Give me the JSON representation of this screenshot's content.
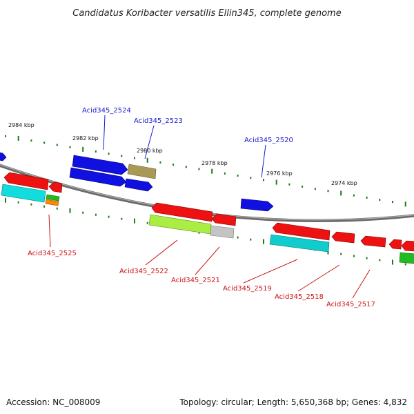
{
  "title": "Candidatus Koribacter versatilis Ellin345, complete genome",
  "footer": {
    "accession": "Accession: NC_008009",
    "stats": "Topology: circular; Length: 5,650,368 bp; Genes: 4,832"
  },
  "scale_labels": [
    "2984 kbp",
    "2982 kbp",
    "2980 kbp",
    "2978 kbp",
    "2976 kbp",
    "2974 kbp"
  ],
  "gene_labels": {
    "top": [
      "Acid345_2524",
      "Acid345_2523",
      "Acid345_2520"
    ],
    "bottom": [
      "Acid345_2525",
      "Acid345_2522",
      "Acid345_2521",
      "Acid345_2519",
      "Acid345_2518",
      "Acid345_2517"
    ]
  },
  "colors": {
    "top_label": "#1a1acc",
    "bottom_label": "#cc1111",
    "tick": "#1a7a1a",
    "backbone": "#888888",
    "blue": "#1010e0",
    "red": "#ee1111",
    "cyan": "#11dddd",
    "olive": "#a89a55",
    "lime": "#aaee44",
    "gray": "#c4c4c4",
    "green": "#22bb22",
    "orange": "#ff8800"
  }
}
